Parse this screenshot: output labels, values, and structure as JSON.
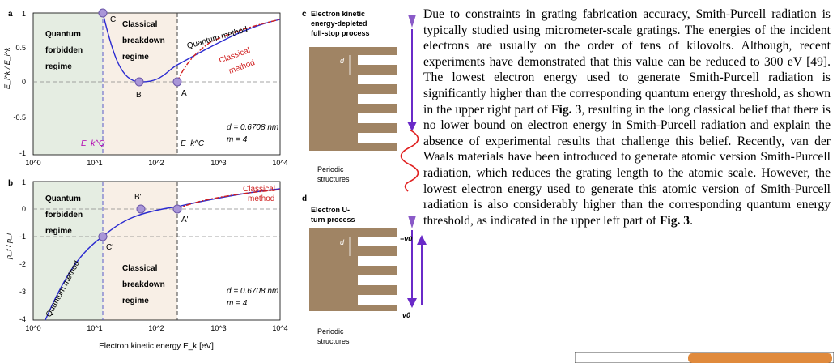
{
  "figure": {
    "panel_a": {
      "label": "a",
      "ylabel": "E_f^k / E_i^k",
      "yticks": [
        "1",
        "0.5",
        "0",
        "-0.5",
        "-1"
      ],
      "xticks": [
        "10^0",
        "10^1",
        "10^2",
        "10^3",
        "10^4"
      ],
      "regime_quantum": [
        "Quantum",
        "forbidden",
        "regime"
      ],
      "regime_classical": [
        "Classical",
        "breakdown",
        "regime"
      ],
      "curve_quantum_label": "Quantum method",
      "curve_classical_label": [
        "Classical",
        "method"
      ],
      "points": [
        "C",
        "B",
        "A"
      ],
      "threshold_quantum": "E_k^Q",
      "threshold_classical": "E_k^C",
      "params": [
        "d = 0.6708 nm",
        "m = 4"
      ]
    },
    "panel_b": {
      "label": "b",
      "ylabel": "p_f / p_i",
      "yticks": [
        "1",
        "0",
        "-1",
        "-2",
        "-3",
        "-4"
      ],
      "xticks": [
        "10^0",
        "10^1",
        "10^2",
        "10^3",
        "10^4"
      ],
      "regime_quantum": [
        "Quantum",
        "forbidden",
        "regime"
      ],
      "regime_classical": [
        "Classical",
        "breakdown",
        "regime"
      ],
      "curve_quantum_label": "Quantum method",
      "curve_classical_label": [
        "Classical",
        "method"
      ],
      "points": [
        "B'",
        "A'",
        "C'"
      ],
      "params": [
        "d = 0.6708 nm",
        "m = 4"
      ],
      "xlabel": "Electron kinetic energy E_k [eV]"
    },
    "panel_c": {
      "label": "c",
      "title": [
        "Electron kinetic",
        "energy-depleted",
        "full-stop process"
      ],
      "d_label": "d",
      "caption": [
        "Periodic",
        "structures"
      ]
    },
    "panel_d": {
      "label": "d",
      "title": [
        "Electron U-",
        "turn process"
      ],
      "d_label": "d",
      "v_minus": "−v0",
      "v_plus": "v0",
      "caption": [
        "Periodic",
        "structures"
      ]
    }
  },
  "body_text": {
    "p1": "Due to constraints in grating fabrication accuracy, Smith-Purcell radiation is typically studied using micrometer-scale gratings. The energies of the incident electrons are usually on the order of tens of kilovolts. Although, recent experiments have demonstrated that this value can be reduced to 300 eV [49]. The lowest electron energy used to generate Smith-Purcell radiation is significantly higher than the corresponding quantum energy threshold, as shown in the upper right part of ",
    "fig_ref_1": "Fig. 3",
    "p2": ", resulting in the long classical belief that there is no lower bound on electron energy in Smith-Purcell radiation and explain the absence of experimental results that challenge this belief. Recently, van der Waals materials have been introduced to generate atomic version Smith-Purcell radiation, which reduces the grating length to the atomic scale. However, the lowest electron energy used to generate this atomic version of Smith-Purcell radiation is also considerably higher than the corresponding quantum energy threshold, as indicated in the upper left part of ",
    "fig_ref_2": "Fig. 3",
    "p3": "."
  }
}
